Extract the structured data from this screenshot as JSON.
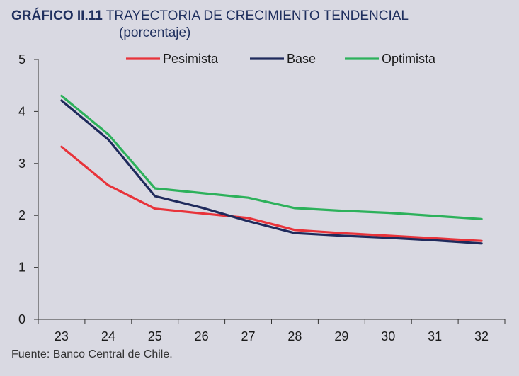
{
  "header": {
    "figure_number": "GRÁFICO II.11",
    "title": "TRAYECTORIA DE CRECIMIENTO TENDENCIAL",
    "subtitle": "(porcentaje)"
  },
  "footer": {
    "source": "Fuente: Banco Central de Chile."
  },
  "chart_data": {
    "type": "line",
    "title": "TRAYECTORIA DE CRECIMIENTO TENDENCIAL",
    "subtitle": "(porcentaje)",
    "xlabel": "",
    "ylabel": "",
    "categories": [
      "23",
      "24",
      "25",
      "26",
      "27",
      "28",
      "29",
      "30",
      "31",
      "32"
    ],
    "ylim": [
      0,
      5
    ],
    "yticks": [
      0,
      1,
      2,
      3,
      4,
      5
    ],
    "grid": false,
    "legend_position": "top",
    "series": [
      {
        "name": "Pesimista",
        "color": "#e8333a",
        "values": [
          3.32,
          2.58,
          2.13,
          2.04,
          1.95,
          1.72,
          1.66,
          1.61,
          1.56,
          1.51
        ]
      },
      {
        "name": "Base",
        "color": "#1f2a5c",
        "values": [
          4.21,
          3.46,
          2.37,
          2.15,
          1.89,
          1.66,
          1.61,
          1.57,
          1.52,
          1.46
        ]
      },
      {
        "name": "Optimista",
        "color": "#2db15b",
        "values": [
          4.3,
          3.56,
          2.52,
          2.43,
          2.34,
          2.14,
          2.09,
          2.05,
          1.99,
          1.93
        ]
      }
    ]
  }
}
